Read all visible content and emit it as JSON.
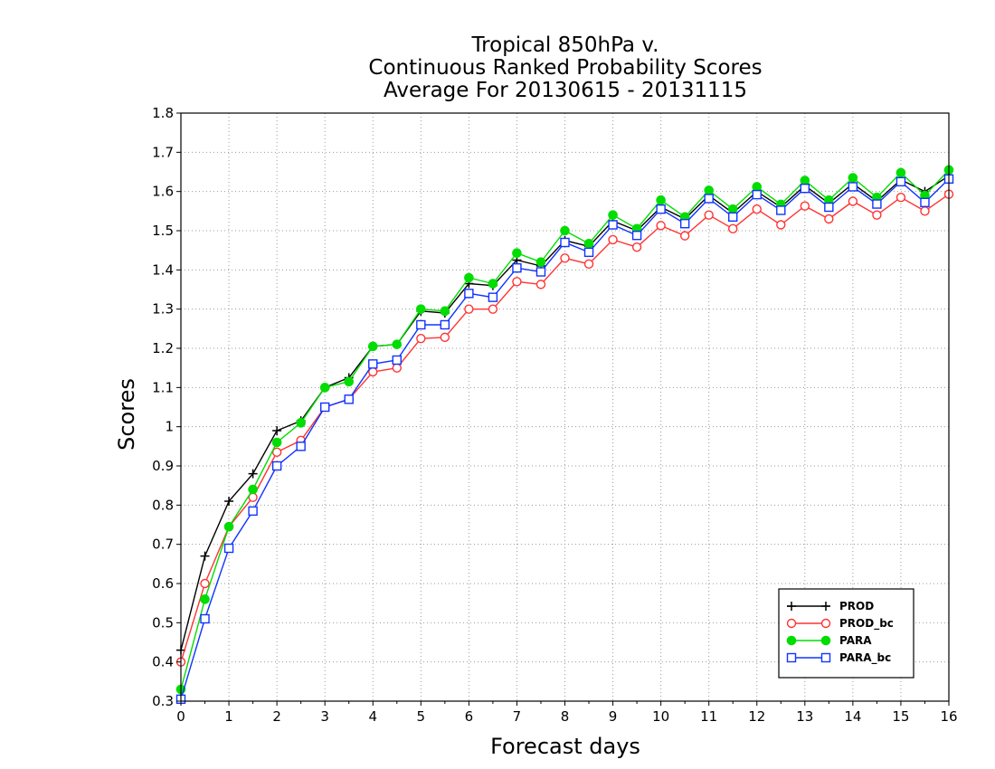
{
  "chart_data": {
    "type": "line",
    "title": [
      "Tropical 850hPa v.",
      "Continuous Ranked Probability Scores",
      "Average For 20130615 - 20131115"
    ],
    "xlabel": "Forecast days",
    "ylabel": "Scores",
    "xlim": [
      0,
      16
    ],
    "ylim": [
      0.3,
      1.8
    ],
    "xticks": [
      "0",
      "1",
      "2",
      "3",
      "4",
      "5",
      "6",
      "7",
      "8",
      "9",
      "10",
      "11",
      "12",
      "13",
      "14",
      "15",
      "16"
    ],
    "yticks": [
      "0.3",
      "0.4",
      "0.5",
      "0.6",
      "0.7",
      "0.8",
      "0.9",
      "1",
      "1.1",
      "1.2",
      "1.3",
      "1.4",
      "1.5",
      "1.6",
      "1.7",
      "1.8"
    ],
    "grid": true,
    "legend_position": "lower-right",
    "x": [
      0,
      0.5,
      1,
      1.5,
      2,
      2.5,
      3,
      3.5,
      4,
      4.5,
      5,
      5.5,
      6,
      6.5,
      7,
      7.5,
      8,
      8.5,
      9,
      9.5,
      10,
      10.5,
      11,
      11.5,
      12,
      12.5,
      13,
      13.5,
      14,
      14.5,
      15,
      15.5,
      16
    ],
    "series": [
      {
        "name": "PROD",
        "color": "#000000",
        "marker": "plus",
        "values": [
          0.43,
          0.67,
          0.81,
          0.88,
          0.99,
          1.015,
          1.1,
          1.125,
          1.205,
          1.21,
          1.295,
          1.29,
          1.365,
          1.36,
          1.425,
          1.41,
          1.475,
          1.46,
          1.525,
          1.5,
          1.56,
          1.53,
          1.59,
          1.545,
          1.6,
          1.56,
          1.615,
          1.57,
          1.62,
          1.575,
          1.63,
          1.6,
          1.64
        ]
      },
      {
        "name": "PROD_bc",
        "color": "#ff3333",
        "marker": "circle-open",
        "values": [
          0.4,
          0.6,
          0.745,
          0.82,
          0.935,
          0.965,
          1.05,
          1.07,
          1.14,
          1.15,
          1.225,
          1.228,
          1.3,
          1.3,
          1.37,
          1.363,
          1.43,
          1.415,
          1.477,
          1.458,
          1.513,
          1.487,
          1.54,
          1.505,
          1.555,
          1.515,
          1.563,
          1.53,
          1.575,
          1.54,
          1.585,
          1.55,
          1.593
        ]
      },
      {
        "name": "PARA",
        "color": "#00dd00",
        "marker": "circle-filled",
        "values": [
          0.33,
          0.56,
          0.745,
          0.84,
          0.96,
          1.01,
          1.1,
          1.115,
          1.205,
          1.21,
          1.3,
          1.295,
          1.38,
          1.365,
          1.443,
          1.42,
          1.5,
          1.467,
          1.54,
          1.505,
          1.578,
          1.535,
          1.603,
          1.555,
          1.612,
          1.567,
          1.628,
          1.578,
          1.635,
          1.585,
          1.648,
          1.59,
          1.655
        ]
      },
      {
        "name": "PARA_bc",
        "color": "#1133ff",
        "marker": "square-open",
        "values": [
          0.305,
          0.51,
          0.69,
          0.785,
          0.9,
          0.95,
          1.05,
          1.07,
          1.16,
          1.17,
          1.26,
          1.26,
          1.34,
          1.33,
          1.405,
          1.395,
          1.47,
          1.445,
          1.515,
          1.488,
          1.555,
          1.518,
          1.582,
          1.535,
          1.592,
          1.552,
          1.608,
          1.56,
          1.612,
          1.568,
          1.625,
          1.572,
          1.632
        ]
      }
    ]
  }
}
